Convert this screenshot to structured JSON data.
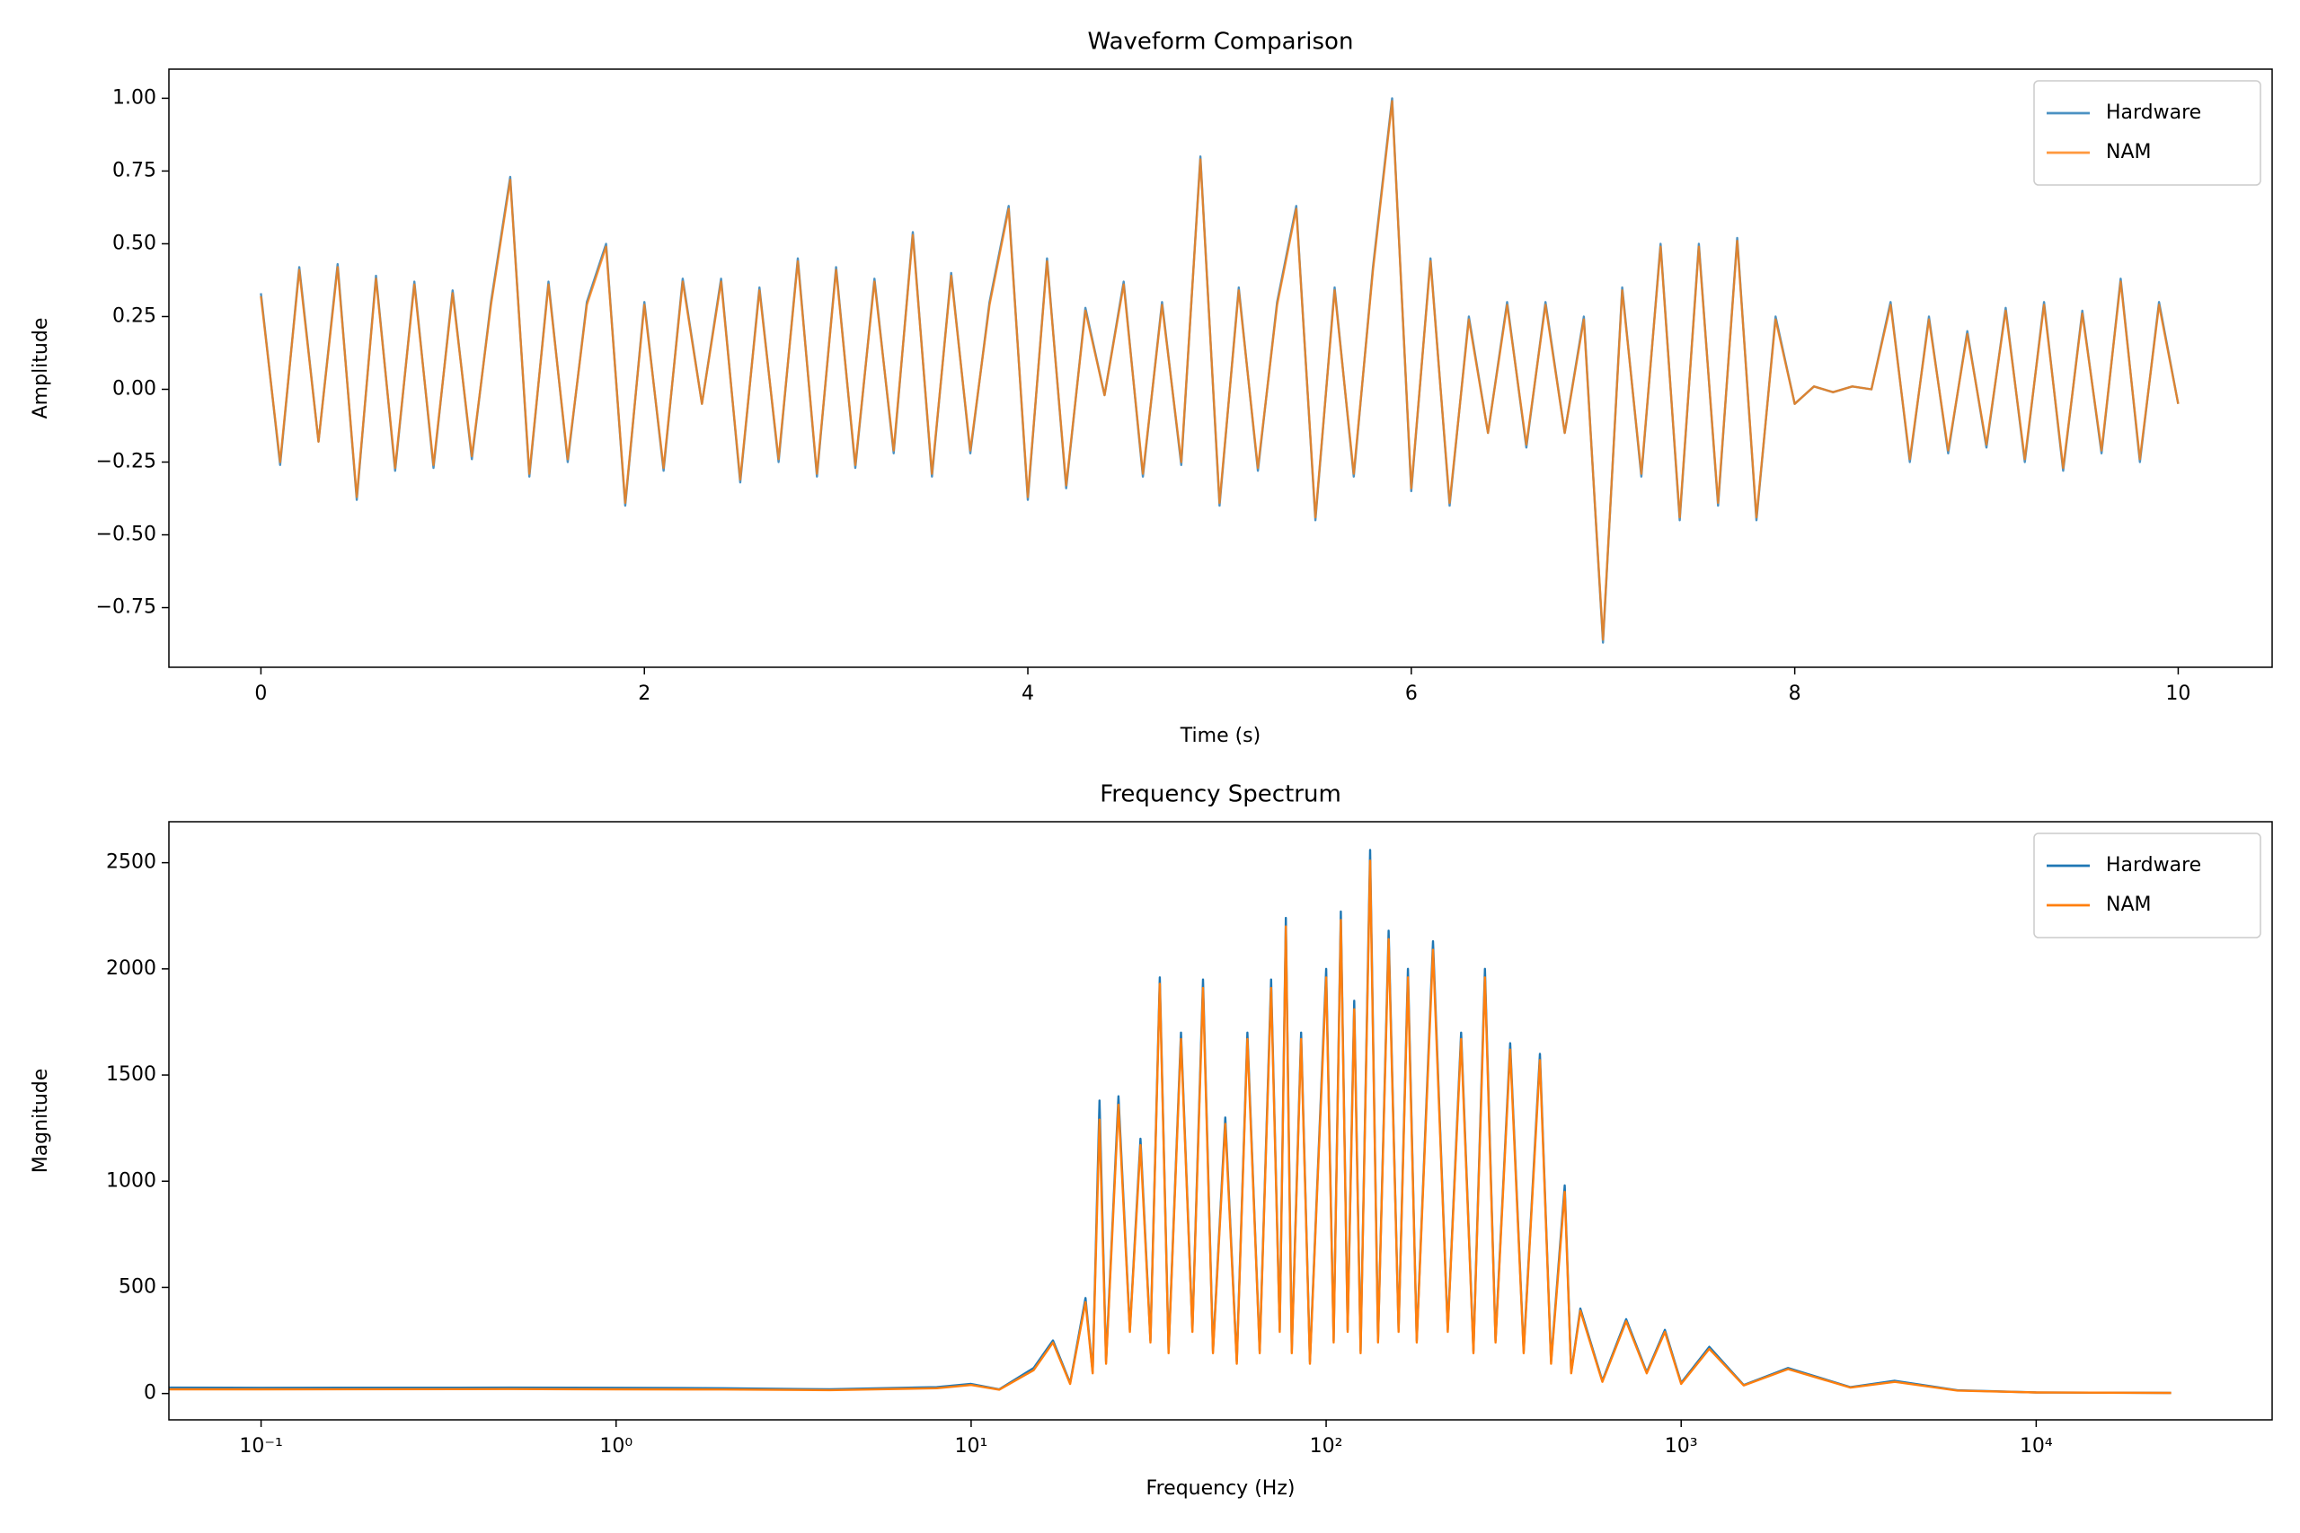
{
  "chart_data": [
    {
      "type": "line",
      "title": "Waveform Comparison",
      "xlabel": "Time (s)",
      "ylabel": "Amplitude",
      "x": [
        0,
        0.1,
        0.2,
        0.3,
        0.4,
        0.5,
        0.6,
        0.7,
        0.8,
        0.9,
        1,
        1.1,
        1.2,
        1.3,
        1.4,
        1.5,
        1.6,
        1.7,
        1.8,
        1.9,
        2,
        2.1,
        2.2,
        2.3,
        2.4,
        2.5,
        2.6,
        2.7,
        2.8,
        2.9,
        3,
        3.1,
        3.2,
        3.3,
        3.4,
        3.5,
        3.6,
        3.7,
        3.8,
        3.9,
        4,
        4.1,
        4.2,
        4.3,
        4.4,
        4.5,
        4.6,
        4.7,
        4.8,
        4.9,
        5,
        5.1,
        5.2,
        5.3,
        5.4,
        5.5,
        5.6,
        5.7,
        5.8,
        5.9,
        6,
        6.1,
        6.2,
        6.3,
        6.4,
        6.5,
        6.6,
        6.7,
        6.8,
        6.9,
        7,
        7.1,
        7.2,
        7.3,
        7.4,
        7.5,
        7.6,
        7.7,
        7.8,
        7.9,
        8,
        8.1,
        8.2,
        8.3,
        8.4,
        8.5,
        8.6,
        8.7,
        8.8,
        8.9,
        9,
        9.1,
        9.2,
        9.3,
        9.4,
        9.5,
        9.6,
        9.7,
        9.8,
        9.9,
        10
      ],
      "series": [
        {
          "name": "Hardware",
          "color": "#1f77b4",
          "values": [
            0.33,
            -0.26,
            0.42,
            -0.18,
            0.43,
            -0.38,
            0.39,
            -0.28,
            0.37,
            -0.27,
            0.34,
            -0.24,
            0.3,
            0.73,
            -0.3,
            0.37,
            -0.25,
            0.3,
            0.5,
            -0.4,
            0.3,
            -0.28,
            0.38,
            -0.05,
            0.38,
            -0.32,
            0.35,
            -0.25,
            0.45,
            -0.3,
            0.42,
            -0.27,
            0.38,
            -0.22,
            0.54,
            -0.3,
            0.4,
            -0.22,
            0.3,
            0.63,
            -0.38,
            0.45,
            -0.34,
            0.28,
            -0.02,
            0.37,
            -0.3,
            0.3,
            -0.26,
            0.8,
            -0.4,
            0.35,
            -0.28,
            0.3,
            0.63,
            -0.45,
            0.35,
            -0.3,
            0.42,
            1.0,
            -0.35,
            0.45,
            -0.4,
            0.25,
            -0.15,
            0.3,
            -0.2,
            0.3,
            -0.15,
            0.25,
            -0.87,
            0.35,
            -0.3,
            0.5,
            -0.45,
            0.5,
            -0.4,
            0.52,
            -0.45,
            0.25,
            -0.05,
            0.01,
            -0.01,
            0.01,
            0.0,
            0.3,
            -0.25,
            0.25,
            -0.22,
            0.2,
            -0.2,
            0.28,
            -0.25,
            0.3,
            -0.28,
            0.27,
            -0.22,
            0.38,
            -0.25,
            0.3,
            -0.05
          ]
        },
        {
          "name": "NAM",
          "color": "#ff7f0e",
          "values": [
            0.32,
            -0.25,
            0.41,
            -0.18,
            0.42,
            -0.37,
            0.38,
            -0.27,
            0.36,
            -0.26,
            0.33,
            -0.23,
            0.29,
            0.72,
            -0.29,
            0.36,
            -0.24,
            0.29,
            0.49,
            -0.39,
            0.29,
            -0.27,
            0.37,
            -0.05,
            0.37,
            -0.31,
            0.34,
            -0.24,
            0.44,
            -0.29,
            0.41,
            -0.26,
            0.37,
            -0.21,
            0.53,
            -0.29,
            0.39,
            -0.21,
            0.29,
            0.62,
            -0.37,
            0.44,
            -0.33,
            0.27,
            -0.02,
            0.36,
            -0.29,
            0.29,
            -0.25,
            0.79,
            -0.39,
            0.34,
            -0.27,
            0.29,
            0.62,
            -0.44,
            0.34,
            -0.29,
            0.41,
            0.99,
            -0.34,
            0.44,
            -0.39,
            0.24,
            -0.15,
            0.29,
            -0.19,
            0.29,
            -0.15,
            0.24,
            -0.86,
            0.34,
            -0.29,
            0.49,
            -0.44,
            0.49,
            -0.39,
            0.51,
            -0.44,
            0.24,
            -0.05,
            0.01,
            -0.01,
            0.01,
            0.0,
            0.29,
            -0.24,
            0.24,
            -0.21,
            0.19,
            -0.19,
            0.27,
            -0.24,
            0.29,
            -0.27,
            0.26,
            -0.21,
            0.37,
            -0.24,
            0.29,
            -0.05
          ]
        }
      ],
      "line_alpha": 0.8,
      "xlim": [
        -0.48,
        10.49
      ],
      "xticks": [
        0,
        2,
        4,
        6,
        8,
        10
      ],
      "ylim": [
        -0.955,
        1.1
      ],
      "yticks": [
        {
          "value": -0.75,
          "label": "−0.75"
        },
        {
          "value": -0.5,
          "label": "−0.50"
        },
        {
          "value": -0.25,
          "label": "−0.25"
        },
        {
          "value": 0,
          "label": "0.00"
        },
        0.25,
        {
          "value": 0.5,
          "label": "0.50"
        },
        0.75,
        {
          "value": 1,
          "label": "1.00"
        }
      ],
      "legend": "upper right"
    },
    {
      "type": "line",
      "title": "Frequency Spectrum",
      "xlabel": "Frequency (Hz)",
      "ylabel": "Magnitude",
      "xscale": "log",
      "x": [
        0.055,
        0.1,
        0.5,
        1,
        2,
        4,
        8,
        10,
        12,
        15,
        17,
        19,
        21,
        22,
        23,
        24,
        26,
        28,
        30,
        32,
        34,
        36,
        39,
        42,
        45,
        48,
        52,
        56,
        60,
        65,
        70,
        74,
        77,
        80,
        85,
        90,
        100,
        105,
        110,
        115,
        120,
        125,
        133,
        140,
        150,
        160,
        170,
        180,
        200,
        220,
        240,
        260,
        280,
        300,
        330,
        360,
        400,
        430,
        470,
        490,
        520,
        600,
        700,
        800,
        900,
        1000,
        1200,
        1500,
        2000,
        3000,
        4000,
        6000,
        10000,
        24000
      ],
      "series": [
        {
          "name": "Hardware",
          "color": "#1f77b4",
          "values": [
            28,
            27,
            28,
            27,
            25,
            20,
            30,
            45,
            20,
            120,
            250,
            50,
            450,
            100,
            1380,
            150,
            1400,
            300,
            1200,
            250,
            1960,
            200,
            1700,
            300,
            1950,
            200,
            1300,
            150,
            1700,
            200,
            1950,
            300,
            2240,
            200,
            1700,
            150,
            2000,
            250,
            2270,
            300,
            1850,
            200,
            2560,
            250,
            2180,
            300,
            2000,
            250,
            2130,
            300,
            1700,
            200,
            2000,
            250,
            1650,
            200,
            1600,
            150,
            980,
            100,
            400,
            60,
            350,
            100,
            300,
            50,
            220,
            40,
            120,
            30,
            60,
            15,
            5,
            3
          ]
        },
        {
          "name": "NAM",
          "color": "#ff7f0e",
          "values": [
            20,
            20,
            21,
            20,
            19,
            16,
            25,
            40,
            18,
            110,
            240,
            45,
            430,
            95,
            1290,
            140,
            1360,
            290,
            1170,
            240,
            1930,
            190,
            1670,
            290,
            1910,
            190,
            1270,
            140,
            1670,
            190,
            1910,
            290,
            2200,
            190,
            1670,
            140,
            1960,
            240,
            2230,
            290,
            1810,
            190,
            2510,
            240,
            2140,
            290,
            1960,
            240,
            2090,
            290,
            1670,
            190,
            1960,
            240,
            1620,
            190,
            1570,
            140,
            950,
            95,
            390,
            55,
            340,
            95,
            290,
            45,
            210,
            38,
            115,
            28,
            55,
            14,
            5,
            3
          ]
        }
      ],
      "xlim": [
        0.055,
        46200
      ],
      "xticks": [
        {
          "value": 0.1,
          "label": "10⁻¹"
        },
        {
          "value": 1,
          "label": "10⁰"
        },
        {
          "value": 10,
          "label": "10¹"
        },
        {
          "value": 100,
          "label": "10²"
        },
        {
          "value": 1000,
          "label": "10³"
        },
        {
          "value": 10000,
          "label": "10⁴"
        }
      ],
      "ylim": [
        -124,
        2693
      ],
      "yticks": [
        0,
        500,
        1000,
        1500,
        2000,
        2500
      ],
      "legend": "upper right"
    }
  ]
}
